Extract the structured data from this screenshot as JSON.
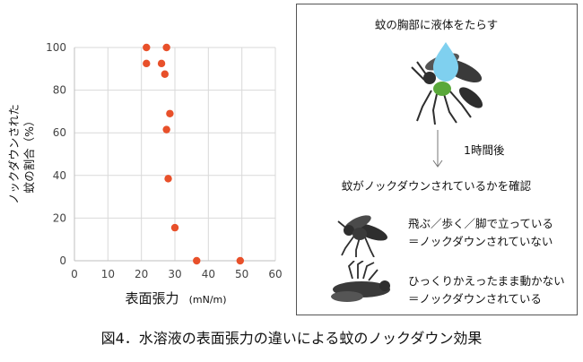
{
  "chart_data": {
    "type": "scatter",
    "xlabel": "表面張力",
    "xunit": "(mN/m)",
    "ylabel_line1": "ノックダウンされた",
    "ylabel_line2": "蚊の割合（%）",
    "xlim": [
      0,
      60
    ],
    "ylim": [
      0,
      100
    ],
    "xticks": [
      0,
      10,
      20,
      30,
      40,
      50,
      60
    ],
    "yticks": [
      0,
      20,
      40,
      60,
      80,
      100
    ],
    "grid": true,
    "marker_color": "#e8502a",
    "points": [
      {
        "x": 21.5,
        "y": 100
      },
      {
        "x": 27.5,
        "y": 100
      },
      {
        "x": 21.5,
        "y": 92.5
      },
      {
        "x": 26.0,
        "y": 92.5
      },
      {
        "x": 27.0,
        "y": 87.5
      },
      {
        "x": 28.5,
        "y": 69
      },
      {
        "x": 27.5,
        "y": 61.5
      },
      {
        "x": 28.0,
        "y": 38.5
      },
      {
        "x": 30.0,
        "y": 15.5
      },
      {
        "x": 36.5,
        "y": 0
      },
      {
        "x": 49.5,
        "y": 0
      }
    ]
  },
  "panel": {
    "title": "蚊の胸部に液体をたらす",
    "time_label": "1時間後",
    "check_label": "蚊がノックダウンされているかを確認",
    "case1_line1": "飛ぶ／歩く／脚で立っている",
    "case1_line2": "＝ノックダウンされていない",
    "case2_line1": "ひっくりかえったまま動かない",
    "case2_line2": "＝ノックダウンされている",
    "colors": {
      "drop": "#7fd0ef",
      "green": "#5aa83a",
      "mosquito": "#2e2e2e"
    }
  },
  "caption": "図4．水溶液の表面張力の違いによる蚊のノックダウン効果"
}
